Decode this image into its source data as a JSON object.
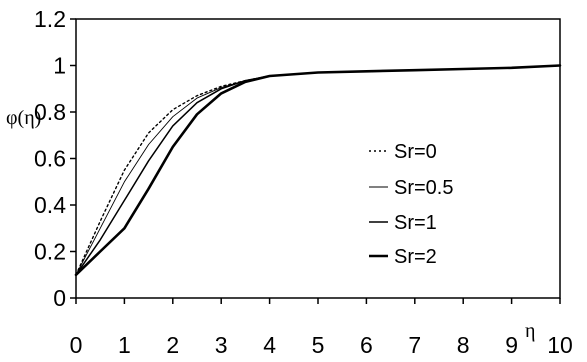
{
  "chart_data": {
    "type": "line",
    "title": "",
    "xlabel": "η",
    "ylabel": "φ(η)",
    "xlim": [
      0,
      10
    ],
    "ylim": [
      0,
      1.2
    ],
    "x_ticks": [
      "0",
      "1",
      "2",
      "3",
      "4",
      "5",
      "6",
      "7",
      "8",
      "9",
      "10"
    ],
    "y_ticks": [
      "0",
      "0.2",
      "0.4",
      "0.6",
      "0.8",
      "1",
      "1.2"
    ],
    "grid": false,
    "legend_position": "right",
    "series": [
      {
        "name": "Sr=0",
        "style": "dotted",
        "x": [
          0,
          0.5,
          1,
          1.5,
          2,
          2.5,
          3,
          3.5,
          4,
          5,
          6,
          7,
          8,
          9,
          10
        ],
        "y": [
          0.1,
          0.33,
          0.55,
          0.71,
          0.81,
          0.87,
          0.91,
          0.935,
          0.955,
          0.97,
          0.975,
          0.98,
          0.985,
          0.99,
          1.0
        ]
      },
      {
        "name": "Sr=0.5",
        "style": "thin",
        "x": [
          0,
          0.5,
          1,
          1.5,
          2,
          2.5,
          3,
          3.5,
          4,
          5,
          6,
          7,
          8,
          9,
          10
        ],
        "y": [
          0.1,
          0.3,
          0.5,
          0.66,
          0.78,
          0.86,
          0.905,
          0.935,
          0.955,
          0.97,
          0.975,
          0.98,
          0.985,
          0.99,
          1.0
        ]
      },
      {
        "name": "Sr=1",
        "style": "medium",
        "x": [
          0,
          0.5,
          1,
          1.5,
          2,
          2.5,
          3,
          3.5,
          4,
          5,
          6,
          7,
          8,
          9,
          10
        ],
        "y": [
          0.1,
          0.25,
          0.42,
          0.59,
          0.74,
          0.84,
          0.9,
          0.935,
          0.955,
          0.97,
          0.975,
          0.98,
          0.985,
          0.99,
          1.0
        ]
      },
      {
        "name": "Sr=2",
        "style": "thick",
        "x": [
          0,
          0.5,
          1,
          1.5,
          2,
          2.5,
          3,
          3.5,
          4,
          5,
          6,
          7,
          8,
          9,
          10
        ],
        "y": [
          0.1,
          0.2,
          0.3,
          0.47,
          0.65,
          0.79,
          0.88,
          0.93,
          0.955,
          0.97,
          0.975,
          0.98,
          0.985,
          0.99,
          1.0
        ]
      }
    ]
  }
}
